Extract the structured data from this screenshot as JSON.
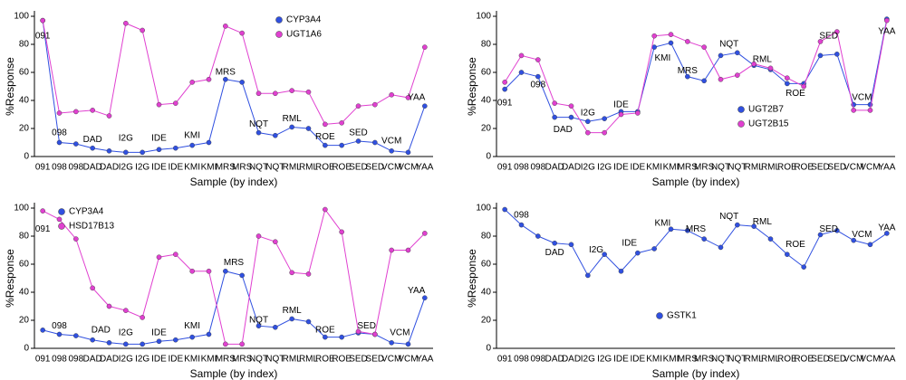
{
  "chart_data": [
    {
      "type": "line",
      "xlabel": "Sample (by index)",
      "ylabel": "%Response",
      "categories": [
        "091",
        "098",
        "098",
        "DAD",
        "DAD",
        "I2G",
        "I2G",
        "IDE",
        "IDE",
        "KMI",
        "KMI",
        "MRS",
        "MRS",
        "NQT",
        "NQT",
        "RML",
        "RML",
        "ROE",
        "ROE",
        "SED",
        "SED",
        "VCM",
        "VCM",
        "YAA"
      ],
      "ylim": [
        0,
        100
      ],
      "yticks": [
        0,
        20,
        40,
        60,
        80,
        100
      ],
      "legend": "upper right",
      "series": [
        {
          "name": "CYP3A4",
          "color": "#3050e0",
          "values": [
            97,
            10,
            9,
            6,
            4,
            3,
            3,
            5,
            6,
            8,
            10,
            55,
            53,
            17,
            15,
            21,
            20,
            8,
            8,
            11,
            10,
            4,
            3,
            36
          ]
        },
        {
          "name": "UGT1A6",
          "color": "#e040d0",
          "values": [
            97,
            31,
            32,
            33,
            29,
            95,
            90,
            37,
            38,
            53,
            55,
            93,
            88,
            45,
            45,
            47,
            46,
            23,
            24,
            36,
            37,
            44,
            42,
            78
          ]
        }
      ],
      "annotations": [
        {
          "text": "091",
          "x": 0,
          "y": 86
        },
        {
          "text": "098",
          "x": 1,
          "y": 17
        },
        {
          "text": "DAD",
          "x": 3,
          "y": 12
        },
        {
          "text": "I2G",
          "x": 5,
          "y": 13
        },
        {
          "text": "IDE",
          "x": 7,
          "y": 13
        },
        {
          "text": "KMI",
          "x": 9,
          "y": 15
        },
        {
          "text": "MRS",
          "x": 11,
          "y": 60
        },
        {
          "text": "NQT",
          "x": 13,
          "y": 23
        },
        {
          "text": "RML",
          "x": 15,
          "y": 27
        },
        {
          "text": "ROE",
          "x": 17,
          "y": 14
        },
        {
          "text": "SED",
          "x": 19,
          "y": 17
        },
        {
          "text": "VCM",
          "x": 21,
          "y": 11
        },
        {
          "text": "YAA",
          "x": 22.5,
          "y": 42
        }
      ]
    },
    {
      "type": "line",
      "xlabel": "Sample (by index)",
      "ylabel": "%Response",
      "categories": [
        "091",
        "098",
        "098",
        "DAD",
        "DAD",
        "I2G",
        "I2G",
        "IDE",
        "IDE",
        "KMI",
        "KMI",
        "MRS",
        "MRS",
        "NQT",
        "NQT",
        "RML",
        "RML",
        "ROE",
        "ROE",
        "SED",
        "SED",
        "VCM",
        "VCM",
        "YAA"
      ],
      "ylim": [
        0,
        100
      ],
      "yticks": [
        0,
        20,
        40,
        60,
        80,
        100
      ],
      "legend": "lower right",
      "series": [
        {
          "name": "UGT2B7",
          "color": "#3050e0",
          "values": [
            48,
            60,
            57,
            28,
            28,
            25,
            27,
            32,
            32,
            78,
            81,
            57,
            54,
            72,
            74,
            65,
            62,
            52,
            52,
            72,
            73,
            37,
            37,
            98
          ]
        },
        {
          "name": "UGT2B15",
          "color": "#e040d0",
          "values": [
            53,
            72,
            69,
            38,
            36,
            17,
            17,
            30,
            31,
            86,
            87,
            82,
            78,
            55,
            58,
            66,
            63,
            56,
            50,
            82,
            89,
            33,
            33,
            97
          ]
        }
      ],
      "annotations": [
        {
          "text": "091",
          "x": 0,
          "y": 38
        },
        {
          "text": "098",
          "x": 2,
          "y": 51
        },
        {
          "text": "DAD",
          "x": 3.5,
          "y": 19
        },
        {
          "text": "I2G",
          "x": 5,
          "y": 31
        },
        {
          "text": "IDE",
          "x": 7,
          "y": 37
        },
        {
          "text": "KMI",
          "x": 9.5,
          "y": 70
        },
        {
          "text": "MRS",
          "x": 11,
          "y": 61
        },
        {
          "text": "NQT",
          "x": 13.5,
          "y": 80
        },
        {
          "text": "RML",
          "x": 15.5,
          "y": 69
        },
        {
          "text": "ROE",
          "x": 17.5,
          "y": 45
        },
        {
          "text": "SED",
          "x": 19.5,
          "y": 86
        },
        {
          "text": "VCM",
          "x": 21.5,
          "y": 42
        },
        {
          "text": "YAA",
          "x": 23,
          "y": 89
        }
      ]
    },
    {
      "type": "line",
      "xlabel": "Sample (by index)",
      "ylabel": "%Response",
      "categories": [
        "091",
        "098",
        "098",
        "DAD",
        "DAD",
        "I2G",
        "I2G",
        "IDE",
        "IDE",
        "KMI",
        "KMI",
        "MRS",
        "MRS",
        "NQT",
        "NQT",
        "RML",
        "RML",
        "ROE",
        "ROE",
        "SED",
        "SED",
        "VCM",
        "VCM",
        "YAA"
      ],
      "ylim": [
        0,
        100
      ],
      "yticks": [
        0,
        20,
        40,
        60,
        80,
        100
      ],
      "legend": "upper left",
      "series": [
        {
          "name": "CYP3A4",
          "color": "#3050e0",
          "values": [
            13,
            10,
            9,
            6,
            4,
            3,
            3,
            5,
            6,
            8,
            10,
            55,
            52,
            16,
            15,
            21,
            19,
            8,
            8,
            11,
            10,
            4,
            3,
            36
          ]
        },
        {
          "name": "HSD17B13",
          "color": "#e040d0",
          "values": [
            98,
            92,
            78,
            43,
            30,
            27,
            22,
            65,
            67,
            55,
            55,
            3,
            3,
            80,
            76,
            54,
            53,
            99,
            83,
            12,
            10,
            70,
            70,
            82
          ]
        }
      ],
      "annotations": [
        {
          "text": "091",
          "x": 0,
          "y": 85
        },
        {
          "text": "098",
          "x": 1,
          "y": 16
        },
        {
          "text": "DAD",
          "x": 3.5,
          "y": 13
        },
        {
          "text": "I2G",
          "x": 5,
          "y": 11
        },
        {
          "text": "IDE",
          "x": 7,
          "y": 11
        },
        {
          "text": "KMI",
          "x": 9,
          "y": 16
        },
        {
          "text": "MRS",
          "x": 11.5,
          "y": 61
        },
        {
          "text": "NQT",
          "x": 13,
          "y": 20
        },
        {
          "text": "RML",
          "x": 15,
          "y": 27
        },
        {
          "text": "ROE",
          "x": 17,
          "y": 13
        },
        {
          "text": "SED",
          "x": 19.5,
          "y": 16
        },
        {
          "text": "VCM",
          "x": 21.5,
          "y": 11
        },
        {
          "text": "YAA",
          "x": 22.5,
          "y": 41
        }
      ]
    },
    {
      "type": "line",
      "xlabel": "Sample (by index)",
      "ylabel": "%Response",
      "categories": [
        "091",
        "098",
        "098",
        "DAD",
        "DAD",
        "I2G",
        "I2G",
        "IDE",
        "IDE",
        "KMI",
        "KMI",
        "MRS",
        "MRS",
        "NQT",
        "NQT",
        "RML",
        "RML",
        "ROE",
        "ROE",
        "SED",
        "SED",
        "VCM",
        "VCM",
        "YAA"
      ],
      "ylim": [
        0,
        100
      ],
      "yticks": [
        0,
        20,
        40,
        60,
        80,
        100
      ],
      "legend": "lower center",
      "series": [
        {
          "name": "GSTK1",
          "color": "#3050e0",
          "values": [
            99,
            88,
            80,
            75,
            74,
            52,
            67,
            55,
            68,
            71,
            85,
            84,
            78,
            72,
            88,
            87,
            78,
            67,
            58,
            81,
            84,
            77,
            74,
            82
          ]
        }
      ],
      "annotations": [
        {
          "text": "098",
          "x": 1,
          "y": 95
        },
        {
          "text": "DAD",
          "x": 3,
          "y": 68
        },
        {
          "text": "I2G",
          "x": 5.5,
          "y": 70
        },
        {
          "text": "IDE",
          "x": 7.5,
          "y": 75
        },
        {
          "text": "KMI",
          "x": 9.5,
          "y": 89
        },
        {
          "text": "MRS",
          "x": 11.5,
          "y": 85
        },
        {
          "text": "NQT",
          "x": 13.5,
          "y": 94
        },
        {
          "text": "RML",
          "x": 15.5,
          "y": 90
        },
        {
          "text": "ROE",
          "x": 17.5,
          "y": 74
        },
        {
          "text": "SED",
          "x": 19.5,
          "y": 85
        },
        {
          "text": "VCM",
          "x": 21.5,
          "y": 81
        },
        {
          "text": "YAA",
          "x": 23,
          "y": 86
        }
      ]
    }
  ]
}
